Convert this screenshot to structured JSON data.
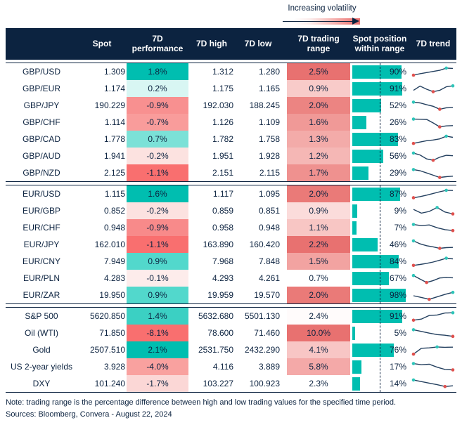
{
  "legend": {
    "label": "Increasing volatility"
  },
  "header": {
    "cols": [
      "",
      "Spot",
      "7D performance",
      "7D high",
      "7D low",
      "7D trading range",
      "Spot position within range",
      "7D trend"
    ]
  },
  "footer": {
    "note": "Note: trading range is the percentage difference between high and low trading values for the specified time period.",
    "sources": "Sources: Bloomberg, Convera - August 22, 2024"
  },
  "colors": {
    "navy": "#0C2340",
    "teal": "#00BEB0",
    "red": "#F96F6F",
    "range_dark_red": "#E87170",
    "bar_teal": "#00BEB0",
    "spark_line": "#24405F",
    "dot_red": "#E0504D",
    "dot_teal": "#2EC5B9"
  },
  "chart_data": {
    "type": "table",
    "columns": [
      "Spot",
      "7D performance",
      "7D high",
      "7D low",
      "7D trading range",
      "Spot position within range",
      "7D trend"
    ],
    "position_midline_pct": 50,
    "blocks": [
      {
        "rows": [
          {
            "label": "GBP/USD",
            "spot": "1.309",
            "performance": "1.8%",
            "perf_bg": "#00BEB0",
            "high": "1.312",
            "low": "1.280",
            "range": "2.5%",
            "range_bg": "#E87170",
            "position_pct": 90,
            "position_label": "90%",
            "trend": [
              25,
              38,
              48,
              58,
              68,
              88,
              85
            ]
          },
          {
            "label": "GBP/EUR",
            "spot": "1.174",
            "performance": "0.2%",
            "perf_bg": "#D8F6F3",
            "high": "1.175",
            "low": "1.165",
            "range": "0.9%",
            "range_bg": "#F8CBC9",
            "position_pct": 91,
            "position_label": "91%",
            "trend": [
              40,
              78,
              50,
              28,
              40,
              72,
              80
            ]
          },
          {
            "label": "GBP/JPY",
            "spot": "190.229",
            "performance": "-0.9%",
            "perf_bg": "#F89090",
            "high": "192.030",
            "low": "188.245",
            "range": "2.0%",
            "range_bg": "#EC8482",
            "position_pct": 52,
            "position_label": "52%",
            "trend": [
              85,
              78,
              62,
              48,
              22,
              35,
              36
            ]
          },
          {
            "label": "GBP/CHF",
            "spot": "1.114",
            "performance": "-0.7%",
            "perf_bg": "#F99C9B",
            "high": "1.126",
            "low": "1.109",
            "range": "1.6%",
            "range_bg": "#F09997",
            "position_pct": 26,
            "position_label": "26%",
            "trend": [
              84,
              83,
              81,
              50,
              15,
              24,
              26
            ]
          },
          {
            "label": "GBP/CAD",
            "spot": "1.778",
            "performance": "0.7%",
            "perf_bg": "#7BE1D7",
            "high": "1.782",
            "low": "1.758",
            "range": "1.3%",
            "range_bg": "#F3ABA9",
            "position_pct": 83,
            "position_label": "83%",
            "trend": [
              18,
              30,
              42,
              48,
              58,
              82,
              72
            ]
          },
          {
            "label": "GBP/AUD",
            "spot": "1.941",
            "performance": "-0.2%",
            "perf_bg": "#FCE2E0",
            "high": "1.951",
            "low": "1.928",
            "range": "1.2%",
            "range_bg": "#F5B7B5",
            "position_pct": 56,
            "position_label": "56%",
            "trend": [
              82,
              65,
              30,
              18,
              45,
              62,
              58
            ]
          },
          {
            "label": "GBP/NZD",
            "spot": "2.125",
            "performance": "-1.1%",
            "perf_bg": "#F96F6F",
            "high": "2.151",
            "low": "2.115",
            "range": "1.7%",
            "range_bg": "#EF918F",
            "position_pct": 29,
            "position_label": "29%",
            "trend": [
              85,
              75,
              55,
              35,
              15,
              22,
              26
            ]
          }
        ]
      },
      {
        "rows": [
          {
            "label": "EUR/USD",
            "spot": "1.115",
            "performance": "1.6%",
            "perf_bg": "#00BEB0",
            "high": "1.117",
            "low": "1.095",
            "range": "2.0%",
            "range_bg": "#EA7A78",
            "position_pct": 87,
            "position_label": "87%",
            "trend": [
              22,
              32,
              45,
              60,
              75,
              88,
              86
            ]
          },
          {
            "label": "EUR/GBP",
            "spot": "0.852",
            "performance": "-0.2%",
            "perf_bg": "#FCE2E0",
            "high": "0.859",
            "low": "0.851",
            "range": "0.9%",
            "range_bg": "#FBDCDB",
            "position_pct": 9,
            "position_label": "9%",
            "trend": [
              68,
              35,
              50,
              85,
              45,
              28
            ]
          },
          {
            "label": "EUR/CHF",
            "spot": "0.948",
            "performance": "-0.9%",
            "perf_bg": "#F88A8A",
            "high": "0.958",
            "low": "0.948",
            "range": "1.1%",
            "range_bg": "#F8C6C4",
            "position_pct": 7,
            "position_label": "7%",
            "trend": [
              84,
              74,
              80,
              55,
              38,
              30
            ]
          },
          {
            "label": "EUR/JPY",
            "spot": "162.010",
            "performance": "-1.1%",
            "perf_bg": "#F96F6F",
            "high": "163.890",
            "low": "160.420",
            "range": "2.2%",
            "range_bg": "#E87170",
            "position_pct": 46,
            "position_label": "46%",
            "trend": [
              88,
              62,
              45,
              35,
              22,
              28,
              30
            ]
          },
          {
            "label": "EUR/CNY",
            "spot": "7.949",
            "performance": "0.9%",
            "perf_bg": "#52D8CC",
            "high": "7.968",
            "low": "7.848",
            "range": "1.5%",
            "range_bg": "#F2A3A1",
            "position_pct": 84,
            "position_label": "84%",
            "trend": [
              20,
              28,
              38,
              50,
              66,
              84,
              78
            ]
          },
          {
            "label": "EUR/PLN",
            "spot": "4.283",
            "performance": "-0.1%",
            "perf_bg": "#FDECEB",
            "high": "4.293",
            "low": "4.261",
            "range": "0.7%",
            "range_bg": "#FFFFFF",
            "position_pct": 67,
            "position_label": "67%",
            "trend": [
              80,
              48,
              18,
              35,
              58,
              62,
              60
            ]
          },
          {
            "label": "EUR/ZAR",
            "spot": "19.950",
            "performance": "0.9%",
            "perf_bg": "#52D8CC",
            "high": "19.959",
            "low": "19.570",
            "range": "2.0%",
            "range_bg": "#EA7A78",
            "position_pct": 98,
            "position_label": "98%",
            "trend": [
              50,
              35,
              18,
              40,
              62,
              80
            ]
          }
        ]
      },
      {
        "rows": [
          {
            "label": "S&P 500",
            "spot": "5620.850",
            "performance": "1.4%",
            "perf_bg": "#3BD0C3",
            "high": "5632.680",
            "low": "5501.130",
            "range": "2.4%",
            "range_bg": "#FFFBFB",
            "position_pct": 91,
            "position_label": "91%",
            "trend": [
              20,
              30,
              62,
              66,
              84,
              86
            ]
          },
          {
            "label": "Oil (WTI)",
            "spot": "71.850",
            "performance": "-8.1%",
            "perf_bg": "#F96F6F",
            "high": "78.600",
            "low": "71.460",
            "range": "10.0%",
            "range_bg": "#E87170",
            "position_pct": 5,
            "position_label": "5%",
            "trend": [
              85,
              70,
              55,
              42,
              36,
              26
            ]
          },
          {
            "label": "Gold",
            "spot": "2507.510",
            "performance": "2.1%",
            "perf_bg": "#00BEB0",
            "high": "2531.750",
            "low": "2432.290",
            "range": "4.1%",
            "range_bg": "#F8C6C5",
            "position_pct": 76,
            "position_label": "76%",
            "trend": [
              18,
              70,
              74,
              82,
              79,
              80
            ]
          },
          {
            "label": "US 2-year yields",
            "spot": "3.928",
            "performance": "-4.0%",
            "perf_bg": "#F9A19F",
            "high": "4.116",
            "low": "3.889",
            "range": "5.8%",
            "range_bg": "#F4A9A8",
            "position_pct": 17,
            "position_label": "17%",
            "trend": [
              84,
              74,
              78,
              52,
              32,
              28
            ]
          },
          {
            "label": "DXY",
            "spot": "101.240",
            "performance": "-1.7%",
            "perf_bg": "#FBD7D6",
            "high": "103.227",
            "low": "100.923",
            "range": "2.3%",
            "range_bg": "#FFFFFF",
            "position_pct": 14,
            "position_label": "14%",
            "trend": [
              88,
              74,
              60,
              46,
              30,
              36
            ]
          }
        ]
      }
    ]
  }
}
